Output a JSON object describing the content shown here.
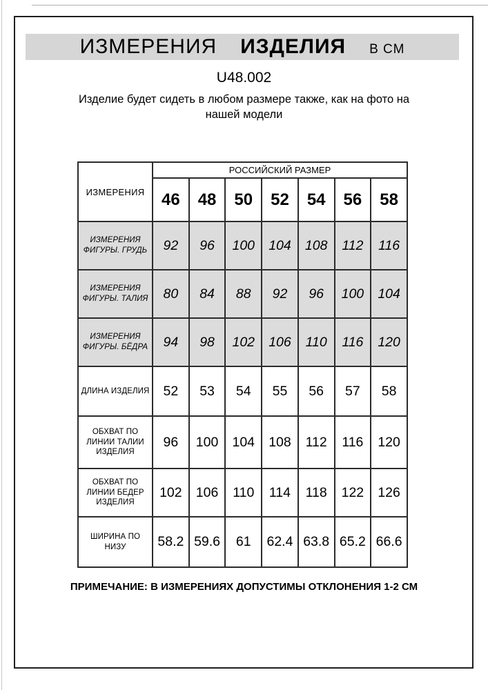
{
  "header": {
    "title_word1": "ИЗМЕРЕНИЯ",
    "title_word2": "ИЗДЕЛИЯ",
    "title_unit": "В СМ",
    "product_code": "U48.002",
    "subtitle": "Изделие будет сидеть в любом размере также, как на фото на\nнашей модели"
  },
  "table": {
    "corner_label": "ИЗМЕРЕНИЯ",
    "group_header": "РОССИЙСКИЙ РАЗМЕР",
    "sizes": [
      "46",
      "48",
      "50",
      "52",
      "54",
      "56",
      "58"
    ],
    "rows": [
      {
        "label": "ИЗМЕРЕНИЯ\nФИГУРЫ. ГРУДЬ",
        "style": "figure",
        "values": [
          "92",
          "96",
          "100",
          "104",
          "108",
          "112",
          "116"
        ]
      },
      {
        "label": "ИЗМЕРЕНИЯ\nФИГУРЫ. ТАЛИЯ",
        "style": "figure",
        "values": [
          "80",
          "84",
          "88",
          "92",
          "96",
          "100",
          "104"
        ]
      },
      {
        "label": "ИЗМЕРЕНИЯ\nФИГУРЫ. БЁДРА",
        "style": "figure",
        "values": [
          "94",
          "98",
          "102",
          "106",
          "110",
          "116",
          "120"
        ]
      },
      {
        "label": "ДЛИНА ИЗДЕЛИЯ",
        "style": "product",
        "values": [
          "52",
          "53",
          "54",
          "55",
          "56",
          "57",
          "58"
        ]
      },
      {
        "label": "ОБХВАТ ПО\nЛИНИИ ТАЛИИ\nИЗДЕЛИЯ",
        "style": "product",
        "values": [
          "96",
          "100",
          "104",
          "108",
          "112",
          "116",
          "120"
        ]
      },
      {
        "label": "ОБХВАТ ПО\nЛИНИИ БЕДЕР\nИЗДЕЛИЯ",
        "style": "product",
        "values": [
          "102",
          "106",
          "110",
          "114",
          "118",
          "122",
          "126"
        ]
      },
      {
        "label": "ШИРИНА ПО\nНИЗУ",
        "style": "product",
        "values": [
          "58.2",
          "59.6",
          "61",
          "62.4",
          "63.8",
          "65.2",
          "66.6"
        ]
      }
    ]
  },
  "footer": {
    "note": "ПРИМЕЧАНИЕ: В ИЗМЕРЕНИЯХ ДОПУСТИМЫ ОТКЛОНЕНИЯ 1-2 СМ"
  },
  "colors": {
    "banner_bg": "#d6d6d6",
    "highlight_row_bg": "#dcdcdc",
    "table_border": "#2b2b2b",
    "frame_border": "#1e1e1e"
  }
}
